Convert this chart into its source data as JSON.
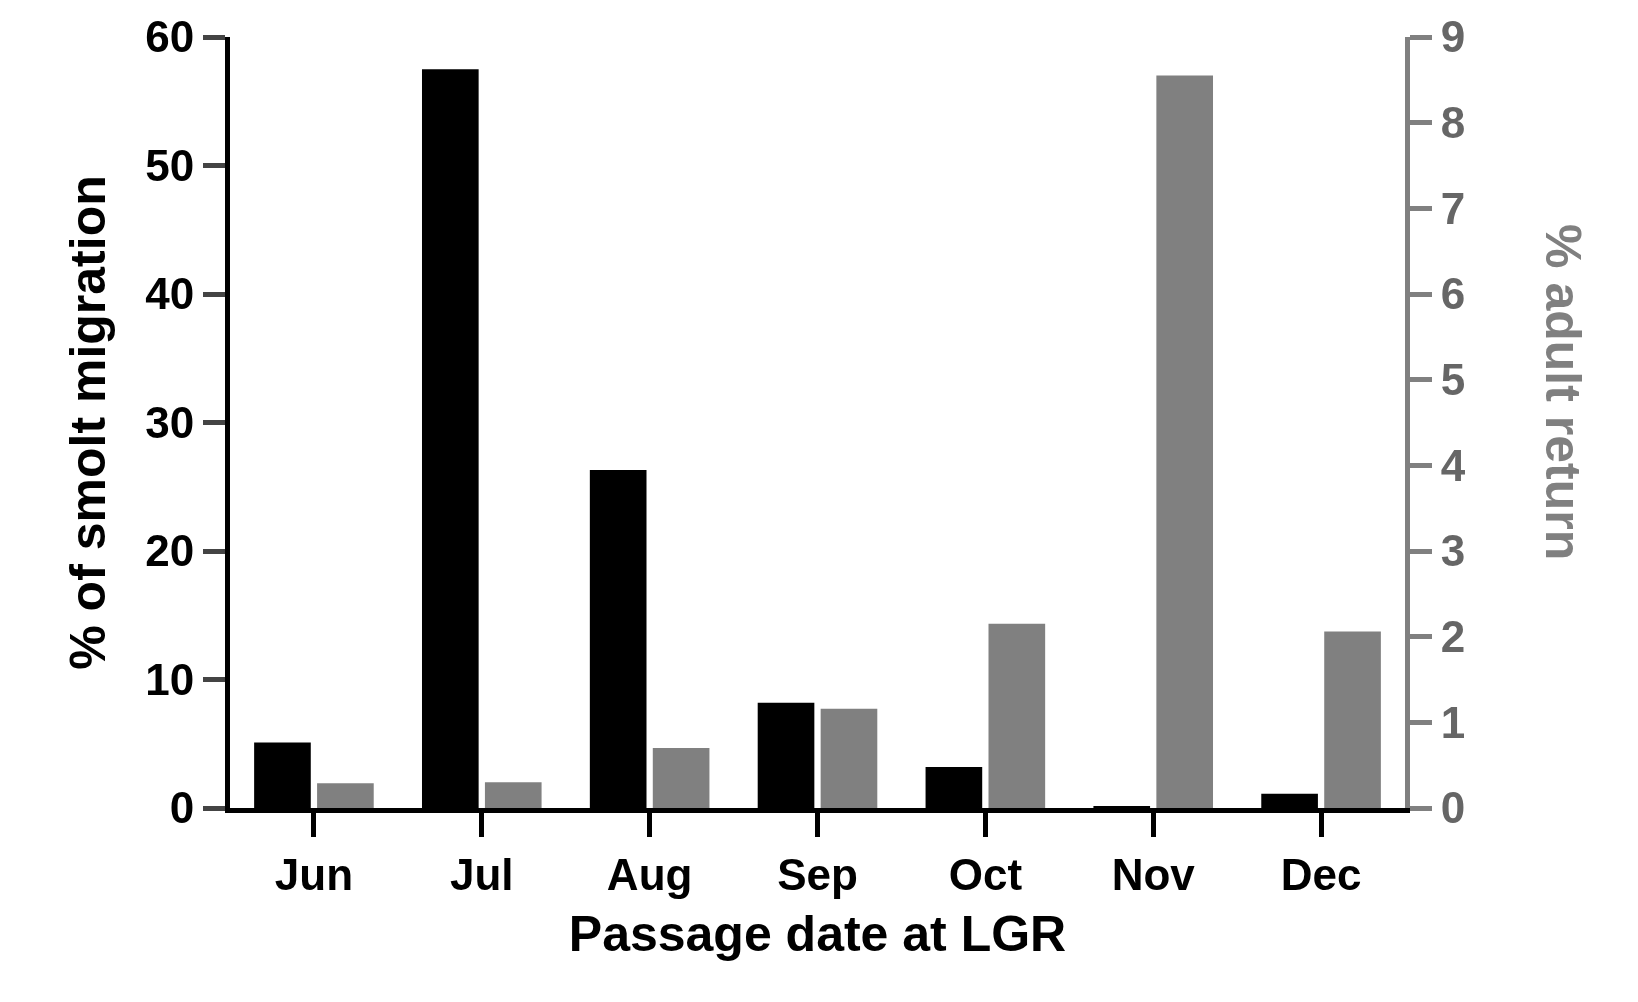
{
  "chart_data": {
    "type": "bar",
    "categories": [
      "Jun",
      "Jul",
      "Aug",
      "Sep",
      "Oct",
      "Nov",
      "Dec"
    ],
    "xlabel": "Passage date at LGR",
    "ylabel": "% of smolt migration",
    "y2label": "% adult return",
    "series": [
      {
        "color": "#000000",
        "values": [
          5.1,
          57.5,
          26.3,
          8.2,
          3.2,
          0.15,
          1.1
        ]
      },
      {
        "color": "#808080",
        "axis": "y2",
        "values": [
          0.29,
          0.3,
          0.7,
          1.16,
          2.15,
          8.55,
          2.06
        ]
      }
    ],
    "ylim": [
      0,
      60
    ],
    "yticks": [
      0,
      10,
      20,
      30,
      40,
      50,
      60
    ],
    "y2lim": [
      0,
      9
    ],
    "y2ticks": [
      0,
      1,
      2,
      3,
      4,
      5,
      6,
      7,
      8,
      9
    ]
  }
}
